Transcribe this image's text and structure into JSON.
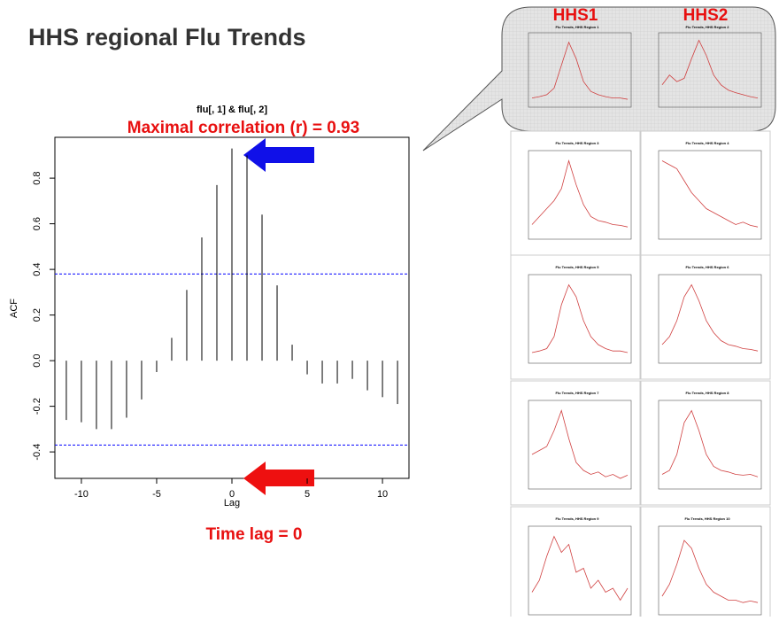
{
  "chart_data": {
    "type": "stem",
    "page_title": "HHS regional Flu Trends",
    "title": "flu[, 1] & flu[, 2]",
    "annotation": "Maximal correlation (r) = 0.93",
    "lag_note": "Time lag = 0",
    "xlabel": "Lag",
    "ylabel": "ACF",
    "x": [
      -11,
      -10,
      -9,
      -8,
      -7,
      -6,
      -5,
      -4,
      -3,
      -2,
      -1,
      0,
      1,
      2,
      3,
      4,
      5,
      6,
      7,
      8,
      9,
      10,
      11
    ],
    "values": [
      -0.26,
      -0.27,
      -0.3,
      -0.3,
      -0.25,
      -0.17,
      -0.05,
      0.1,
      0.31,
      0.54,
      0.77,
      0.93,
      0.9,
      0.64,
      0.33,
      0.07,
      -0.06,
      -0.1,
      -0.1,
      -0.08,
      -0.13,
      -0.16,
      -0.19
    ],
    "color": "#000000",
    "ci_lines": [
      0.38,
      -0.37
    ],
    "ci_color": "#0000ff",
    "xlim": [
      -11.76,
      11.76
    ],
    "ylim": [
      -0.516,
      0.979
    ],
    "xticks": [
      -10,
      -5,
      0,
      5,
      10
    ],
    "yticks": [
      -0.4,
      -0.2,
      {
        "value": 0,
        "label": "0.0"
      },
      0.2,
      0.4,
      0.6,
      0.8
    ]
  },
  "thumbnails": {
    "column_labels": [
      "HHS1",
      "HHS2"
    ],
    "color": "#d04040",
    "ylim": [
      0,
      100
    ],
    "panels": [
      {
        "title": "Flu Trends, HHS Region 1",
        "values": [
          10,
          12,
          15,
          25,
          60,
          95,
          70,
          35,
          20,
          15,
          12,
          10,
          10,
          8
        ]
      },
      {
        "title": "Flu Trends, HHS Region 2",
        "values": [
          30,
          45,
          35,
          40,
          70,
          98,
          75,
          45,
          30,
          22,
          18,
          15,
          12,
          10
        ]
      },
      {
        "title": "Flu Trends, HHS Region 3",
        "values": [
          15,
          25,
          35,
          45,
          60,
          95,
          65,
          40,
          25,
          20,
          18,
          15,
          14,
          12
        ]
      },
      {
        "title": "Flu Trends, HHS Region 4",
        "values": [
          95,
          90,
          85,
          70,
          55,
          45,
          35,
          30,
          25,
          20,
          15,
          18,
          14,
          12
        ]
      },
      {
        "title": "Flu Trends, HHS Region 5",
        "values": [
          10,
          12,
          15,
          30,
          70,
          95,
          80,
          50,
          30,
          20,
          15,
          12,
          12,
          10
        ]
      },
      {
        "title": "Flu Trends, HHS Region 6",
        "values": [
          20,
          30,
          50,
          80,
          95,
          75,
          50,
          35,
          25,
          20,
          18,
          15,
          14,
          12
        ]
      },
      {
        "title": "Flu Trends, HHS Region 7",
        "values": [
          40,
          45,
          50,
          70,
          95,
          60,
          30,
          20,
          15,
          18,
          12,
          15,
          10,
          14
        ]
      },
      {
        "title": "Flu Trends, HHS Region 8",
        "values": [
          15,
          20,
          40,
          80,
          95,
          70,
          40,
          25,
          20,
          18,
          15,
          14,
          15,
          12
        ]
      },
      {
        "title": "Flu Trends, HHS Region 9",
        "values": [
          25,
          40,
          70,
          95,
          75,
          85,
          50,
          55,
          30,
          40,
          25,
          30,
          15,
          30
        ]
      },
      {
        "title": "Flu Trends, HHS Region 10",
        "values": [
          20,
          35,
          60,
          90,
          80,
          55,
          35,
          25,
          20,
          15,
          15,
          12,
          14,
          12
        ]
      }
    ]
  }
}
